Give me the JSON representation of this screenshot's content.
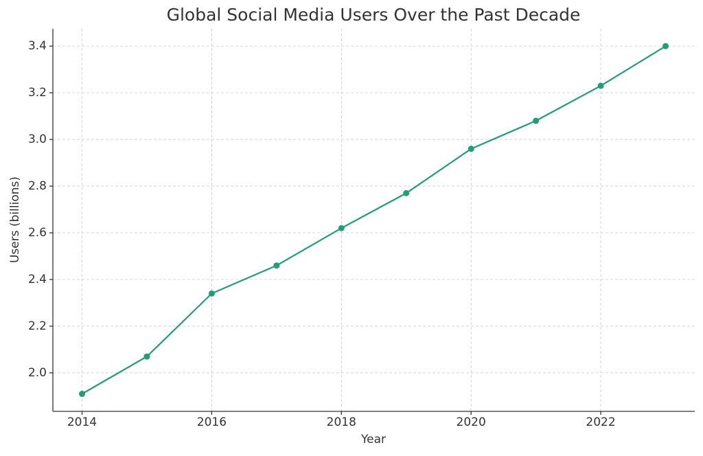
{
  "chart_data": {
    "type": "line",
    "title": "Global Social Media Users Over the Past Decade",
    "x_label": "Year",
    "y_label": "Users (billions)",
    "x": [
      2014,
      2015,
      2016,
      2017,
      2018,
      2019,
      2020,
      2021,
      2022,
      2023
    ],
    "series": [
      {
        "name": "Users",
        "color": "#1f9e78",
        "values": [
          1.91,
          2.07,
          2.34,
          2.46,
          2.62,
          2.77,
          2.96,
          3.08,
          3.23,
          3.4
        ]
      }
    ],
    "xlim": [
      2013.55,
      2023.45
    ],
    "xticks": [
      2014,
      2016,
      2018,
      2020,
      2022
    ],
    "ylim": [
      1.835,
      3.474
    ],
    "yticks": [
      {
        "value": 2,
        "label": "2.0"
      },
      2.2,
      2.4,
      2.6,
      2.8,
      {
        "value": 3,
        "label": "3.0"
      },
      3.2,
      3.4
    ],
    "grid": true
  }
}
